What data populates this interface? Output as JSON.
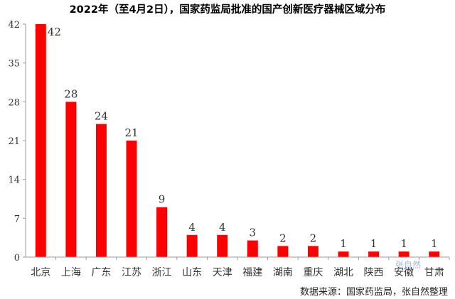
{
  "chart_data": {
    "type": "bar",
    "title": "2022年（至4月2日），国家药监局批准的国产创新医疗器械区域分布",
    "categories": [
      "北京",
      "上海",
      "广东",
      "江苏",
      "浙江",
      "山东",
      "天津",
      "福建",
      "湖南",
      "重庆",
      "湖北",
      "陕西",
      "安徽",
      "甘肃"
    ],
    "values": [
      42,
      28,
      24,
      21,
      9,
      4,
      4,
      3,
      2,
      2,
      1,
      1,
      1,
      1
    ],
    "data_labels": [
      "42",
      "28",
      "24",
      "21",
      "9",
      "4",
      "4",
      "3",
      "2",
      "2",
      "1",
      "1",
      "1",
      "1"
    ],
    "yticks": [
      "0",
      "7",
      "14",
      "21",
      "28",
      "35",
      "42"
    ],
    "ytick_values": [
      0,
      7,
      14,
      21,
      28,
      35,
      42
    ],
    "ylim": [
      0,
      42
    ],
    "xlabel": "",
    "ylabel": "",
    "grid": false,
    "legend": "none",
    "bar_color": "#ff0000"
  },
  "source_note": "数据来源：国家药监局，张自然整理",
  "watermark": "张自然"
}
